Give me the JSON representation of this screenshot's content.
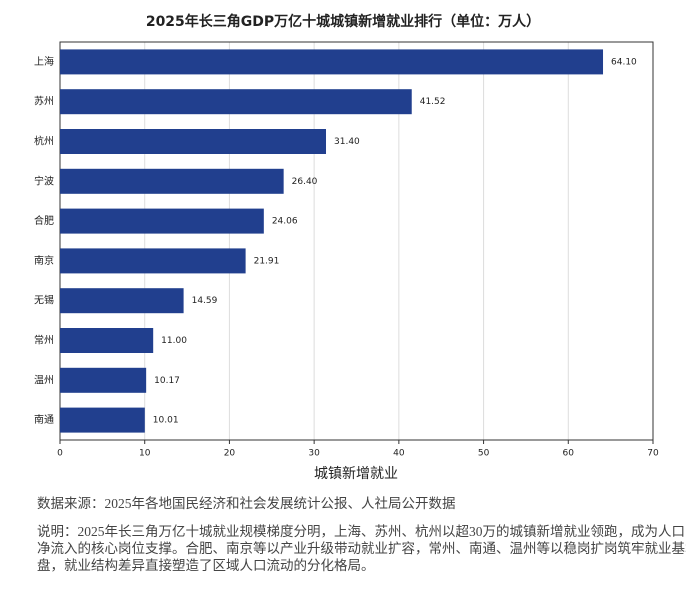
{
  "chart_data": {
    "type": "barh",
    "title": "2025年长三角GDP万亿十城城镇新增就业排行（单位：万人）",
    "x_label": "城镇新增就业",
    "categories": [
      "上海",
      "苏州",
      "杭州",
      "宁波",
      "合肥",
      "南京",
      "无锡",
      "常州",
      "温州",
      "南通"
    ],
    "values": [
      64.1,
      41.52,
      31.4,
      26.4,
      24.06,
      21.91,
      14.59,
      11.0,
      10.17,
      10.01
    ],
    "value_labels": [
      "64.10",
      "41.52",
      "31.40",
      "26.40",
      "24.06",
      "21.91",
      "14.59",
      "11.00",
      "10.17",
      "10.01"
    ],
    "color": "#213f8e",
    "xlim": [
      0,
      70
    ],
    "xticks": [
      0,
      10,
      20,
      30,
      40,
      50,
      60,
      70
    ],
    "grid": true
  },
  "source": "数据来源：2025年各地国民经济和社会发展统计公报、人社局公开数据",
  "note_lines": [
    "说明：2025年长三角万亿十城就业规模梯度分明，上海、苏州、杭州以超30万的城镇新增就业领跑，成为人口",
    "净流入的核心岗位支撑。合肥、南京等以产业升级带动就业扩容，常州、南通、温州等以稳岗扩岗筑牢就业基本",
    "盘，就业结构差异直接塑造了区域人口流动的分化格局。"
  ]
}
